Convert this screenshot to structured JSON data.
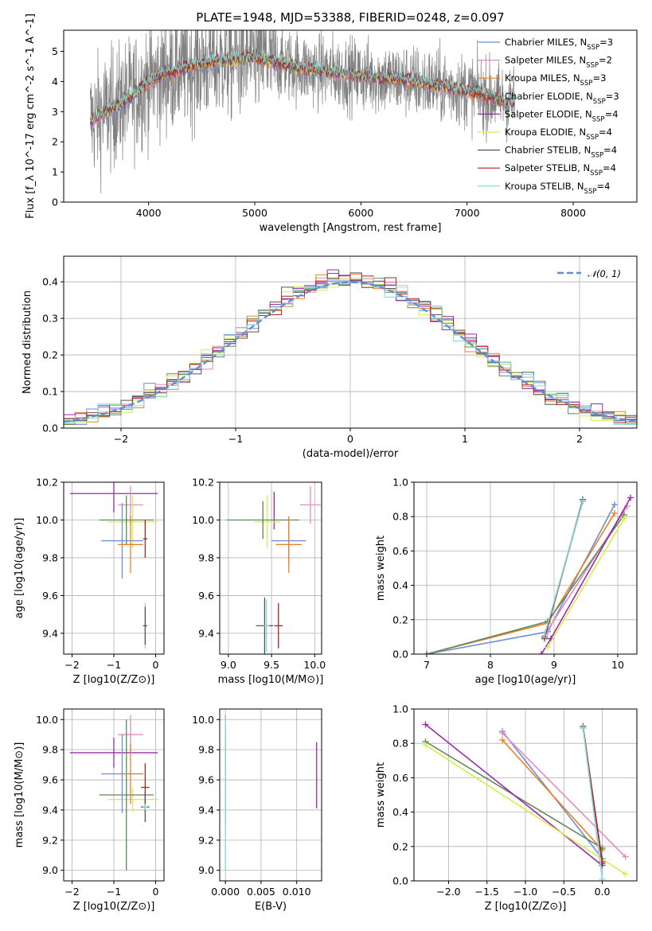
{
  "figure_title": "PLATE=1948, MJD=53388, FIBERID=0248, z=0.097",
  "colors": {
    "Chabrier MILES": "#6b8ed6",
    "Salpeter MILES": "#e58ac0",
    "Kroupa MILES": "#f07f22",
    "Chabrier ELODIE": "#5a8a5a",
    "Salpeter ELODIE": "#9b2aa8",
    "Kroupa ELODIE": "#d6ee4a",
    "Chabrier STELIB": "#555555",
    "Salpeter STELIB": "#b22222",
    "Kroupa STELIB": "#7fd8d8",
    "data": "#808080",
    "normal": "#5f8fd6"
  },
  "chart_data": [
    {
      "id": "spectrum",
      "type": "line",
      "title": "PLATE=1948, MJD=53388, FIBERID=0248, z=0.097",
      "xlabel": "wavelength [Angstrom, rest frame]",
      "ylabel": "Flux [f_λ 10^-17 erg cm^-2 s^-1 A^-1]",
      "xlim": [
        3200,
        8600
      ],
      "ylim": [
        0,
        5.7
      ],
      "xticks": [
        4000,
        5000,
        6000,
        7000,
        8000
      ],
      "yticks": [
        0,
        1,
        2,
        3,
        4,
        5
      ],
      "grid": false,
      "legend_position": "top-right",
      "legend": [
        {
          "name": "Chabrier MILES",
          "sub": "SSP",
          "n": 3
        },
        {
          "name": "Salpeter MILES",
          "sub": "SSP",
          "n": 2
        },
        {
          "name": "Kroupa MILES",
          "sub": "SSP",
          "n": 3
        },
        {
          "name": "Chabrier ELODIE",
          "sub": "SSP",
          "n": 3
        },
        {
          "name": "Salpeter ELODIE",
          "sub": "SSP",
          "n": 4
        },
        {
          "name": "Kroupa ELODIE",
          "sub": "SSP",
          "n": 4
        },
        {
          "name": "Chabrier STELIB",
          "sub": "SSP",
          "n": 4
        },
        {
          "name": "Salpeter STELIB",
          "sub": "SSP",
          "n": 4
        },
        {
          "name": "Kroupa STELIB",
          "sub": "SSP",
          "n": 4
        }
      ],
      "continuum": {
        "x": [
          3450,
          3600,
          3800,
          4000,
          4200,
          4500,
          5000,
          5500,
          6000,
          6500,
          7000,
          7400
        ],
        "y": [
          2.7,
          3.0,
          3.4,
          4.0,
          4.3,
          4.6,
          4.8,
          4.4,
          4.2,
          4.0,
          3.7,
          3.3
        ]
      },
      "data_noise_scale": 1.1,
      "data_x_range": [
        3450,
        7450
      ]
    },
    {
      "id": "residuals",
      "type": "histogram",
      "xlabel": "(data-model)/error",
      "ylabel": "Normed distribution",
      "xlim": [
        -2.5,
        2.5
      ],
      "ylim": [
        0,
        0.47
      ],
      "xticks": [
        -2,
        -1,
        0,
        1,
        2
      ],
      "yticks": [
        0.0,
        0.1,
        0.2,
        0.3,
        0.4
      ],
      "grid": true,
      "legend_position": "top-right",
      "legend": [
        {
          "name": "N(0,1)",
          "style": "dashed"
        }
      ],
      "bin_width": 0.1,
      "profile_sigma": 1.0,
      "profile_peak": 0.41
    },
    {
      "id": "age-vs-Z",
      "type": "errorbar",
      "xlabel": "Z [log10(Z/Z⊙)]",
      "ylabel": "age [log10(age/yr)]",
      "xlim": [
        -2.2,
        0.2
      ],
      "ylim": [
        9.29,
        10.2
      ],
      "xticks": [
        -2,
        -1,
        0
      ],
      "yticks": [
        9.4,
        9.6,
        9.8,
        10.0,
        10.2
      ],
      "grid": true,
      "points": [
        {
          "series": "Salpeter ELODIE",
          "x": -1.0,
          "xerr": 1.05,
          "y": 10.14,
          "yerr": 0.1
        },
        {
          "series": "Salpeter MILES",
          "x": -0.6,
          "xerr": 0.3,
          "y": 10.08,
          "yerr": 0.1
        },
        {
          "series": "Kroupa ELODIE",
          "x": -0.55,
          "xerr": 0.6,
          "y": 9.99,
          "yerr": 0.14
        },
        {
          "series": "Chabrier ELODIE",
          "x": -0.7,
          "xerr": 0.65,
          "y": 10.0,
          "yerr": 0.13
        },
        {
          "series": "Chabrier MILES",
          "x": -0.8,
          "xerr": 0.5,
          "y": 9.89,
          "yerr": 0.2
        },
        {
          "series": "Kroupa MILES",
          "x": -0.6,
          "xerr": 0.3,
          "y": 9.87,
          "yerr": 0.15
        },
        {
          "series": "Kroupa STELIB",
          "x": -0.25,
          "xerr": 0.05,
          "y": 9.44,
          "yerr": 0.12
        },
        {
          "series": "Chabrier STELIB",
          "x": -0.25,
          "xerr": 0.05,
          "y": 9.44,
          "yerr": 0.1
        },
        {
          "series": "Salpeter STELIB",
          "x": -0.25,
          "xerr": 0.05,
          "y": 9.9,
          "yerr": 0.1
        }
      ]
    },
    {
      "id": "age-vs-mass",
      "type": "errorbar",
      "xlabel": "mass [log10(M/M⊙)]",
      "ylabel": "",
      "xlim": [
        8.9,
        10.08
      ],
      "ylim": [
        9.29,
        10.2
      ],
      "xticks": [
        9.0,
        9.5,
        10.0
      ],
      "yticks": [
        9.4,
        9.6,
        9.8,
        10.0,
        10.2
      ],
      "grid": true,
      "points": [
        {
          "series": "Salpeter ELODIE",
          "x": 9.53,
          "xerr": 0.0,
          "y": 10.05,
          "yerr": 0.1
        },
        {
          "series": "Salpeter MILES",
          "x": 9.95,
          "xerr": 0.12,
          "y": 10.08,
          "yerr": 0.1
        },
        {
          "series": "Kroupa ELODIE",
          "x": 9.45,
          "xerr": 0.15,
          "y": 9.99,
          "yerr": 0.14
        },
        {
          "series": "Chabrier ELODIE",
          "x": 9.4,
          "xerr": 0.42,
          "y": 10.0,
          "yerr": 0.1
        },
        {
          "series": "Chabrier MILES",
          "x": 9.7,
          "xerr": 0.2,
          "y": 9.89,
          "yerr": 0.12
        },
        {
          "series": "Kroupa MILES",
          "x": 9.7,
          "xerr": 0.15,
          "y": 9.87,
          "yerr": 0.15
        },
        {
          "series": "Chabrier STELIB",
          "x": 9.42,
          "xerr": 0.1,
          "y": 9.44,
          "yerr": 0.15
        },
        {
          "series": "Kroupa STELIB",
          "x": 9.44,
          "xerr": 0.03,
          "y": 9.44,
          "yerr": 0.14
        },
        {
          "series": "Salpeter STELIB",
          "x": 9.58,
          "xerr": 0.05,
          "y": 9.44,
          "yerr": 0.12
        }
      ]
    },
    {
      "id": "massweight-vs-age",
      "type": "line",
      "xlabel": "age [log10(age/yr)]",
      "ylabel": "mass weight",
      "xlim": [
        6.8,
        10.3
      ],
      "ylim": [
        0,
        1.0
      ],
      "xticks": [
        7,
        8,
        9,
        10
      ],
      "yticks": [
        0.0,
        0.2,
        0.4,
        0.6,
        0.8,
        1.0
      ],
      "grid": true,
      "series": [
        {
          "name": "Chabrier MILES",
          "x": [
            7.0,
            8.9,
            9.95
          ],
          "y": [
            0.0,
            0.13,
            0.87
          ]
        },
        {
          "name": "Salpeter MILES",
          "x": [
            8.9,
            10.15
          ],
          "y": [
            0.14,
            0.86
          ]
        },
        {
          "name": "Kroupa MILES",
          "x": [
            7.0,
            8.9,
            9.95
          ],
          "y": [
            0.0,
            0.18,
            0.82
          ]
        },
        {
          "name": "Chabrier ELODIE",
          "x": [
            7.0,
            8.9,
            10.1
          ],
          "y": [
            0.0,
            0.19,
            0.81
          ]
        },
        {
          "name": "Salpeter ELODIE",
          "x": [
            8.8,
            8.95,
            10.2
          ],
          "y": [
            0.0,
            0.09,
            0.91
          ]
        },
        {
          "name": "Kroupa ELODIE",
          "x": [
            8.9,
            10.1
          ],
          "y": [
            0.04,
            0.79
          ]
        },
        {
          "name": "Chabrier STELIB",
          "x": [
            8.85,
            9.45
          ],
          "y": [
            0.09,
            0.9
          ]
        },
        {
          "name": "Salpeter STELIB",
          "x": [
            8.85,
            9.45
          ],
          "y": [
            0.1,
            0.89
          ]
        },
        {
          "name": "Kroupa STELIB",
          "x": [
            8.85,
            9.45
          ],
          "y": [
            0.11,
            0.89
          ]
        }
      ]
    },
    {
      "id": "mass-vs-Z",
      "type": "errorbar",
      "xlabel": "Z [log10(Z/Z⊙)]",
      "ylabel": "mass [log10(M/M⊙)]",
      "xlim": [
        -2.2,
        0.2
      ],
      "ylim": [
        8.93,
        10.07
      ],
      "xticks": [
        -2,
        -1,
        0
      ],
      "yticks": [
        9.0,
        9.2,
        9.4,
        9.6,
        9.8,
        10.0
      ],
      "grid": true,
      "points": [
        {
          "series": "Salpeter ELODIE",
          "x": -1.0,
          "xerr": 1.05,
          "y": 9.78,
          "yerr": 0.1
        },
        {
          "series": "Salpeter MILES",
          "x": -0.6,
          "xerr": 0.3,
          "y": 9.9,
          "yerr": 0.13
        },
        {
          "series": "Kroupa ELODIE",
          "x": -0.55,
          "xerr": 0.6,
          "y": 9.47,
          "yerr": 0.08
        },
        {
          "series": "Chabrier ELODIE",
          "x": -0.7,
          "xerr": 0.65,
          "y": 9.5,
          "yerr": 0.5
        },
        {
          "series": "Chabrier MILES",
          "x": -0.8,
          "xerr": 0.5,
          "y": 9.64,
          "yerr": 0.26
        },
        {
          "series": "Kroupa MILES",
          "x": -0.6,
          "xerr": 0.3,
          "y": 9.64,
          "yerr": 0.2
        },
        {
          "series": "Salpeter STELIB",
          "x": -0.25,
          "xerr": 0.1,
          "y": 9.55,
          "yerr": 0.16
        },
        {
          "series": "Chabrier STELIB",
          "x": -0.25,
          "xerr": 0.1,
          "y": 9.42,
          "yerr": 0.1
        },
        {
          "series": "Kroupa STELIB",
          "x": -0.25,
          "xerr": 0.05,
          "y": 9.42,
          "yerr": 0.02
        }
      ]
    },
    {
      "id": "mass-vs-EBV",
      "type": "errorbar",
      "xlabel": "E(B-V)",
      "ylabel": "",
      "xlim": [
        -0.0008,
        0.0135
      ],
      "ylim": [
        8.93,
        10.07
      ],
      "xticks": [
        0.0,
        0.005,
        0.01
      ],
      "xticklabels": [
        "0.000",
        "0.005",
        "0.010"
      ],
      "yticks": [
        9.0,
        9.2,
        9.4,
        9.6,
        9.8,
        10.0
      ],
      "grid": true,
      "points": [
        {
          "series": "Salpeter MILES",
          "x": 0.0,
          "xerr": 0.0,
          "y": 9.95,
          "yerr": 0.08
        },
        {
          "series": "Salpeter STELIB",
          "x": 0.0,
          "xerr": 0.0,
          "y": 9.75,
          "yerr": 0.1
        },
        {
          "series": "Chabrier ELODIE",
          "x": 0.0,
          "xerr": 0.0,
          "y": 9.6,
          "yerr": 0.3
        },
        {
          "series": "Kroupa STELIB",
          "x": 0.0,
          "xerr": 0.0,
          "y": 9.5,
          "yerr": 0.5
        },
        {
          "series": "Salpeter ELODIE",
          "x": 0.0128,
          "xerr": 0.0,
          "y": 9.63,
          "yerr": 0.22
        }
      ]
    },
    {
      "id": "massweight-vs-Z",
      "type": "line",
      "xlabel": "Z [log10(Z/Z⊙)]",
      "ylabel": "mass weight",
      "xlim": [
        -2.45,
        0.45
      ],
      "ylim": [
        0,
        1.0
      ],
      "xticks": [
        -2.0,
        -1.5,
        -1.0,
        -0.5,
        0.0
      ],
      "xticklabels": [
        "−2.0",
        "−1.5",
        "−1.0",
        "−0.5",
        "0.0"
      ],
      "yticks": [
        0.0,
        0.2,
        0.4,
        0.6,
        0.8,
        1.0
      ],
      "grid": true,
      "series": [
        {
          "name": "Chabrier MILES",
          "x": [
            -1.3,
            0.0
          ],
          "y": [
            0.87,
            0.13
          ]
        },
        {
          "name": "Salpeter MILES",
          "x": [
            -1.3,
            0.3
          ],
          "y": [
            0.86,
            0.14
          ]
        },
        {
          "name": "Kroupa MILES",
          "x": [
            -1.3,
            0.0
          ],
          "y": [
            0.82,
            0.18
          ]
        },
        {
          "name": "Chabrier ELODIE",
          "x": [
            -2.3,
            0.0
          ],
          "y": [
            0.81,
            0.19
          ]
        },
        {
          "name": "Salpeter ELODIE",
          "x": [
            -2.3,
            0.0
          ],
          "y": [
            0.91,
            0.09
          ]
        },
        {
          "name": "Kroupa ELODIE",
          "x": [
            -2.3,
            0.3
          ],
          "y": [
            0.79,
            0.04
          ]
        },
        {
          "name": "Chabrier STELIB",
          "x": [
            -0.25,
            0.0
          ],
          "y": [
            0.9,
            0.1
          ]
        },
        {
          "name": "Salpeter STELIB",
          "x": [
            -0.25,
            0.0
          ],
          "y": [
            0.89,
            0.11
          ]
        },
        {
          "name": "Kroupa STELIB",
          "x": [
            -0.25,
            0.0
          ],
          "y": [
            0.89,
            0.01
          ]
        }
      ]
    }
  ]
}
